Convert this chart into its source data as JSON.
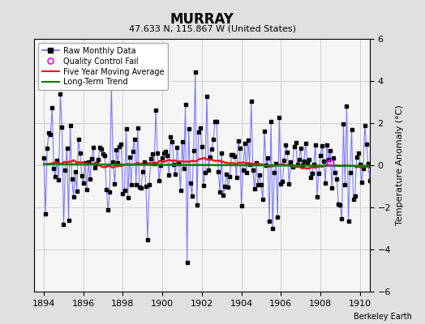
{
  "title": "MURRAY",
  "subtitle": "47.633 N, 115.867 W (United States)",
  "credit": "Berkeley Earth",
  "ylabel": "Temperature Anomaly (°C)",
  "ylim": [
    -6,
    6
  ],
  "xlim": [
    1893.5,
    1910.5
  ],
  "xticks": [
    1894,
    1896,
    1898,
    1900,
    1902,
    1904,
    1906,
    1908,
    1910
  ],
  "yticks": [
    -6,
    -4,
    -2,
    0,
    2,
    4,
    6
  ],
  "bg_color": "#e0e0e0",
  "plot_bg_color": "#f5f5f5",
  "raw_line_color": "#6666ff",
  "raw_marker_color": "black",
  "qc_fail_color": "magenta",
  "moving_avg_color": "red",
  "trend_color": "green",
  "seed": 17,
  "n_years": 17,
  "start_year": 1894,
  "qc_fail_year": 1908.5,
  "qc_fail_val": 0.1,
  "trend_slope": -0.005,
  "trend_intercept": 0.05
}
